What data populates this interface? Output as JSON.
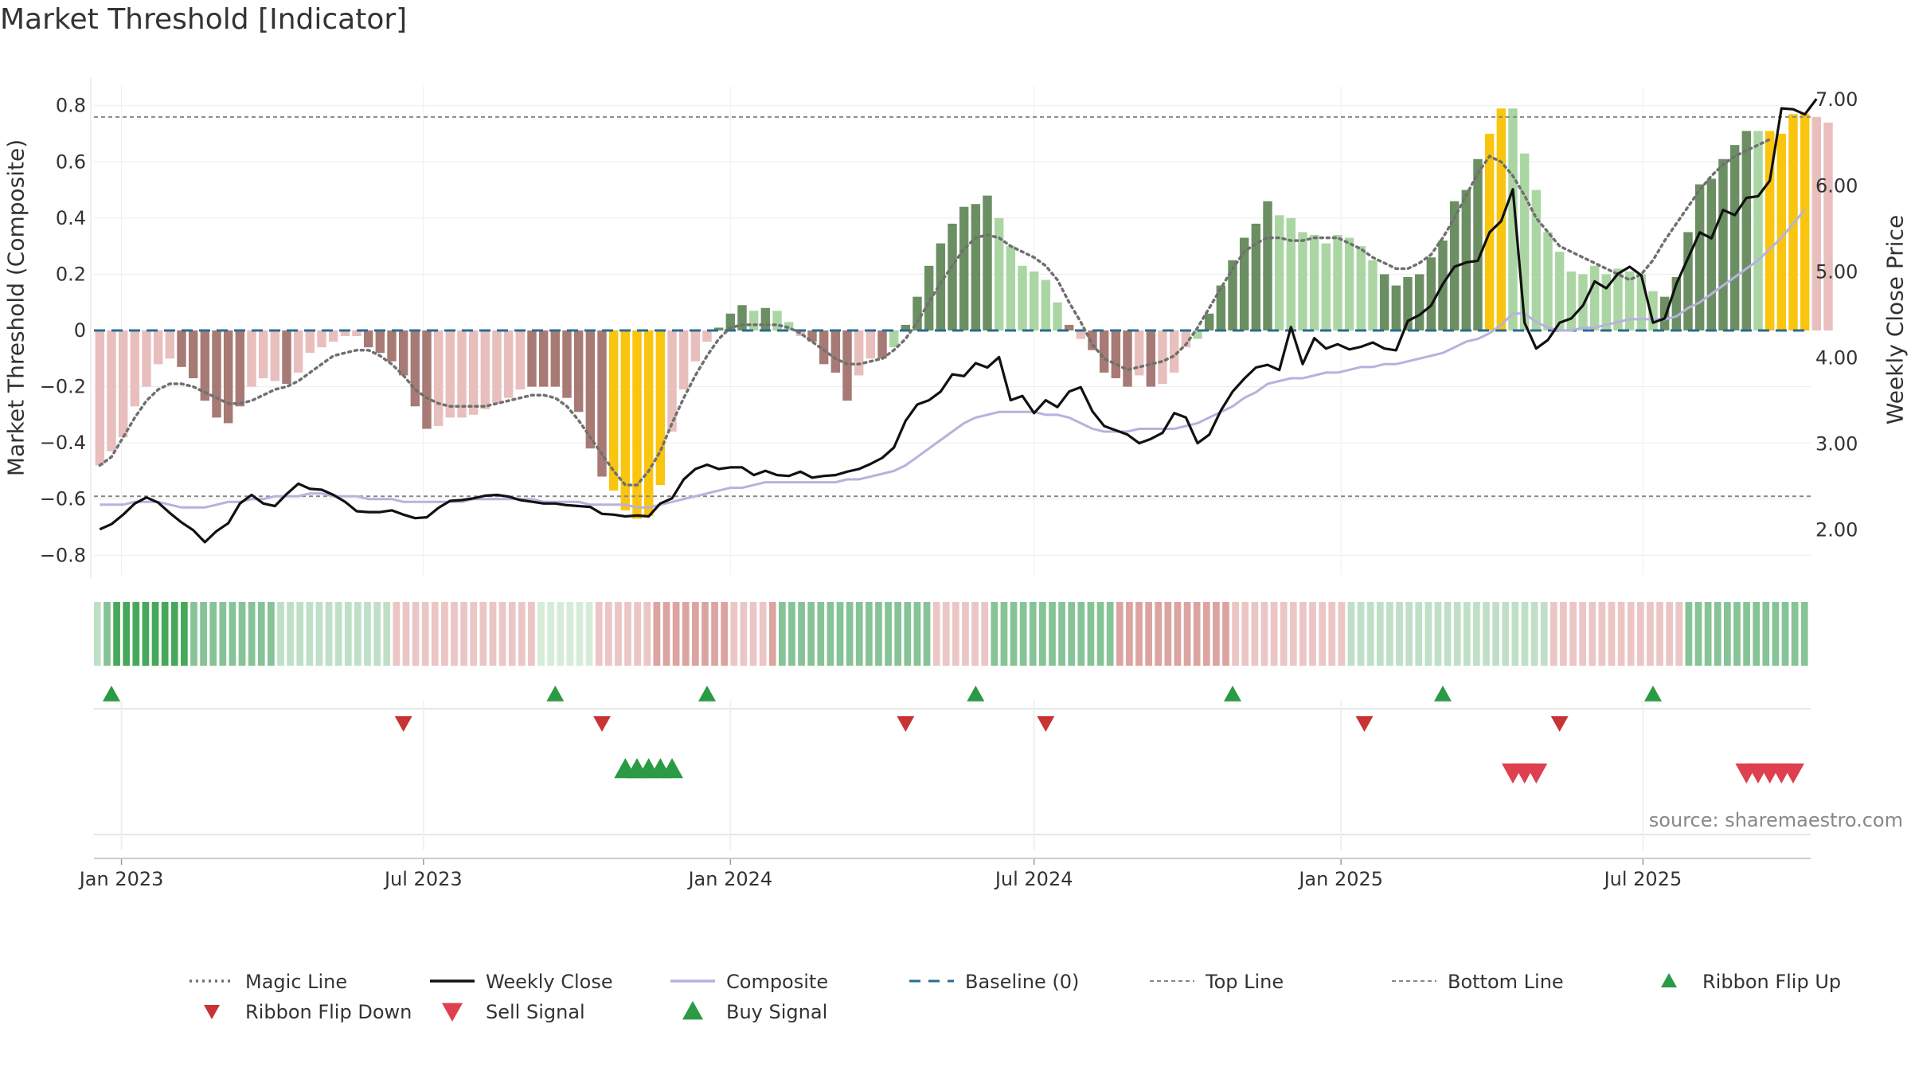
{
  "title": "Market Threshold [Indicator]",
  "source": "source: sharemaestro.com",
  "colors": {
    "dark_red": "#a87a75",
    "light_red": "#e8bfbd",
    "dark_green": "#6b8f62",
    "light_green": "#abd6a4",
    "yellow": "#f9c50e",
    "magic": "#707070",
    "close": "#111111",
    "composite": "#b8b1dd",
    "baseline": "#2b6c8f",
    "thresholds": "#888888",
    "ribbon_up": "#2a9a44",
    "ribbon_down": "#c83333",
    "buy": "#2a9a44",
    "sell": "#de4050"
  },
  "chart_data": {
    "type": "bar",
    "title": "Market Threshold [Indicator]",
    "ylabel": "Market Threshold (Composite)",
    "y2label": "Weekly Close Price",
    "ylim": [
      -0.87,
      0.87
    ],
    "y2lim": [
      1.47,
      7.15
    ],
    "yticks": [
      -0.8,
      -0.6,
      -0.4,
      -0.2,
      0,
      0.2,
      0.4,
      0.6,
      0.8
    ],
    "ytick_labels": [
      "−0.8",
      "−0.6",
      "−0.4",
      "−0.2",
      "0",
      "0.2",
      "0.4",
      "0.6",
      "0.8"
    ],
    "y2ticks": [
      2,
      3,
      4,
      5,
      6,
      7
    ],
    "y2tick_labels": [
      "2.00",
      "3.00",
      "4.00",
      "5.00",
      "6.00",
      "7.00"
    ],
    "x_start": "2022-12-19",
    "x_step_days": 7,
    "xticks": [
      "2023-01-01",
      "2023-07-01",
      "2024-01-01",
      "2024-07-01",
      "2025-01-01",
      "2025-07-01"
    ],
    "xtick_labels": [
      "Jan 2023",
      "Jul 2023",
      "Jan 2024",
      "Jul 2024",
      "Jan 2025",
      "Jul 2025"
    ],
    "top_line": 0.76,
    "bottom_line": -0.59,
    "baseline": 0,
    "bars": [
      -0.48,
      -0.43,
      -0.38,
      -0.27,
      -0.2,
      -0.12,
      -0.1,
      -0.13,
      -0.17,
      -0.25,
      -0.31,
      -0.33,
      -0.27,
      -0.2,
      -0.17,
      -0.18,
      -0.19,
      -0.15,
      -0.08,
      -0.06,
      -0.04,
      -0.02,
      -0.02,
      -0.06,
      -0.08,
      -0.11,
      -0.16,
      -0.27,
      -0.35,
      -0.34,
      -0.31,
      -0.31,
      -0.3,
      -0.28,
      -0.26,
      -0.24,
      -0.21,
      -0.2,
      -0.2,
      -0.2,
      -0.24,
      -0.29,
      -0.42,
      -0.52,
      -0.57,
      -0.64,
      -0.67,
      -0.66,
      -0.55,
      -0.36,
      -0.21,
      -0.11,
      -0.04,
      0.01,
      0.06,
      0.09,
      0.07,
      0.08,
      0.07,
      0.03,
      -0.02,
      -0.04,
      -0.12,
      -0.15,
      -0.25,
      -0.16,
      -0.1,
      -0.1,
      -0.06,
      0.02,
      0.12,
      0.23,
      0.31,
      0.38,
      0.44,
      0.45,
      0.48,
      0.4,
      0.3,
      0.23,
      0.21,
      0.18,
      0.1,
      0.02,
      -0.03,
      -0.07,
      -0.15,
      -0.17,
      -0.2,
      -0.16,
      -0.2,
      -0.19,
      -0.15,
      -0.06,
      -0.03,
      0.06,
      0.16,
      0.25,
      0.33,
      0.38,
      0.46,
      0.41,
      0.4,
      0.35,
      0.34,
      0.31,
      0.34,
      0.33,
      0.3,
      0.25,
      0.2,
      0.16,
      0.19,
      0.2,
      0.26,
      0.32,
      0.46,
      0.5,
      0.61,
      0.7,
      0.79,
      0.79,
      0.63,
      0.5,
      0.35,
      0.28,
      0.21,
      0.2,
      0.23,
      0.2,
      0.22,
      0.21,
      0.2,
      0.14,
      0.12,
      0.19,
      0.35,
      0.52,
      0.54,
      0.61,
      0.66,
      0.71,
      0.71,
      0.71,
      0.7,
      0.77,
      0.77,
      0.76,
      0.74
    ],
    "bar_colors": [
      "L",
      "L",
      "L",
      "L",
      "L",
      "L",
      "L",
      "R",
      "R",
      "R",
      "R",
      "R",
      "R",
      "L",
      "L",
      "L",
      "R",
      "L",
      "L",
      "L",
      "L",
      "L",
      "L",
      "R",
      "R",
      "R",
      "R",
      "R",
      "R",
      "L",
      "L",
      "L",
      "L",
      "L",
      "L",
      "L",
      "L",
      "R",
      "R",
      "R",
      "R",
      "R",
      "R",
      "R",
      "Y",
      "Y",
      "Y",
      "Y",
      "Y",
      "L",
      "L",
      "L",
      "L",
      "G",
      "G",
      "G",
      "LG",
      "G",
      "LG",
      "LG",
      "L",
      "R",
      "R",
      "R",
      "R",
      "L",
      "L",
      "R",
      "LG",
      "G",
      "G",
      "G",
      "G",
      "G",
      "G",
      "G",
      "G",
      "LG",
      "LG",
      "LG",
      "LG",
      "LG",
      "LG",
      "R",
      "L",
      "R",
      "R",
      "R",
      "R",
      "L",
      "R",
      "L",
      "L",
      "L",
      "LG",
      "G",
      "G",
      "G",
      "G",
      "G",
      "G",
      "LG",
      "LG",
      "LG",
      "LG",
      "LG",
      "LG",
      "LG",
      "LG",
      "LG",
      "G",
      "G",
      "G",
      "G",
      "G",
      "G",
      "G",
      "G",
      "G",
      "Y",
      "Y",
      "LG",
      "LG",
      "LG",
      "LG",
      "LG",
      "LG",
      "LG",
      "LG",
      "LG",
      "LG",
      "LG",
      "LG",
      "LG",
      "G",
      "G",
      "G",
      "G",
      "G",
      "G",
      "G",
      "G",
      "LG",
      "Y",
      "Y",
      "Y",
      "Y"
    ],
    "series": [
      {
        "name": "Magic Line",
        "style": "dotted",
        "values": [
          -0.48,
          -0.45,
          -0.38,
          -0.31,
          -0.25,
          -0.21,
          -0.19,
          -0.19,
          -0.2,
          -0.22,
          -0.24,
          -0.26,
          -0.26,
          -0.25,
          -0.23,
          -0.21,
          -0.2,
          -0.18,
          -0.15,
          -0.12,
          -0.09,
          -0.08,
          -0.07,
          -0.07,
          -0.09,
          -0.12,
          -0.16,
          -0.21,
          -0.24,
          -0.26,
          -0.27,
          -0.27,
          -0.27,
          -0.27,
          -0.26,
          -0.25,
          -0.24,
          -0.23,
          -0.23,
          -0.24,
          -0.27,
          -0.32,
          -0.38,
          -0.44,
          -0.5,
          -0.55,
          -0.55,
          -0.5,
          -0.43,
          -0.33,
          -0.24,
          -0.16,
          -0.09,
          -0.03,
          0.01,
          0.02,
          0.02,
          0.02,
          0.02,
          0.01,
          -0.01,
          -0.04,
          -0.07,
          -0.1,
          -0.12,
          -0.12,
          -0.11,
          -0.1,
          -0.07,
          -0.03,
          0.03,
          0.1,
          0.17,
          0.23,
          0.29,
          0.33,
          0.34,
          0.33,
          0.3,
          0.28,
          0.26,
          0.23,
          0.18,
          0.1,
          0.03,
          -0.05,
          -0.1,
          -0.12,
          -0.14,
          -0.13,
          -0.12,
          -0.11,
          -0.09,
          -0.05,
          0.01,
          0.08,
          0.15,
          0.22,
          0.28,
          0.31,
          0.33,
          0.33,
          0.32,
          0.32,
          0.33,
          0.33,
          0.33,
          0.31,
          0.29,
          0.26,
          0.24,
          0.22,
          0.22,
          0.24,
          0.27,
          0.33,
          0.4,
          0.48,
          0.56,
          0.62,
          0.6,
          0.55,
          0.48,
          0.4,
          0.35,
          0.3,
          0.28,
          0.26,
          0.24,
          0.22,
          0.2,
          0.18,
          0.2,
          0.25,
          0.32,
          0.38,
          0.44,
          0.5,
          0.55,
          0.59,
          0.62,
          0.64,
          0.66,
          0.68
        ]
      },
      {
        "name": "Weekly Close",
        "style": "solid",
        "axis": "right",
        "values": [
          2.0,
          2.06,
          2.17,
          2.3,
          2.37,
          2.31,
          2.19,
          2.08,
          1.99,
          1.85,
          1.98,
          2.07,
          2.3,
          2.4,
          2.3,
          2.27,
          2.41,
          2.53,
          2.47,
          2.46,
          2.4,
          2.32,
          2.21,
          2.2,
          2.2,
          2.22,
          2.17,
          2.13,
          2.14,
          2.25,
          2.33,
          2.34,
          2.36,
          2.39,
          2.4,
          2.38,
          2.34,
          2.32,
          2.3,
          2.3,
          2.28,
          2.27,
          2.26,
          2.18,
          2.17,
          2.15,
          2.16,
          2.15,
          2.3,
          2.36,
          2.58,
          2.7,
          2.75,
          2.7,
          2.72,
          2.72,
          2.63,
          2.68,
          2.63,
          2.62,
          2.67,
          2.6,
          2.62,
          2.63,
          2.67,
          2.7,
          2.76,
          2.83,
          2.95,
          3.26,
          3.45,
          3.5,
          3.6,
          3.8,
          3.78,
          3.93,
          3.88,
          4.0,
          3.5,
          3.55,
          3.35,
          3.5,
          3.42,
          3.6,
          3.65,
          3.37,
          3.2,
          3.15,
          3.1,
          3.0,
          3.05,
          3.12,
          3.35,
          3.3,
          3.0,
          3.1,
          3.38,
          3.6,
          3.75,
          3.88,
          3.91,
          3.85,
          4.35,
          3.92,
          4.22,
          4.1,
          4.15,
          4.09,
          4.12,
          4.17,
          4.1,
          4.08,
          4.42,
          4.49,
          4.6,
          4.85,
          5.05,
          5.1,
          5.12,
          5.45,
          5.58,
          5.95,
          4.4,
          4.1,
          4.2,
          4.4,
          4.45,
          4.6,
          4.88,
          4.8,
          4.97,
          5.05,
          4.95,
          4.4,
          4.45,
          4.85,
          5.15,
          5.45,
          5.38,
          5.71,
          5.65,
          5.85,
          5.87,
          6.05,
          6.89,
          6.88,
          6.82,
          7.0
        ]
      },
      {
        "name": "Composite",
        "style": "solid",
        "values": [
          -0.62,
          -0.62,
          -0.62,
          -0.61,
          -0.61,
          -0.61,
          -0.62,
          -0.63,
          -0.63,
          -0.63,
          -0.62,
          -0.61,
          -0.61,
          -0.6,
          -0.6,
          -0.59,
          -0.59,
          -0.59,
          -0.58,
          -0.58,
          -0.59,
          -0.59,
          -0.59,
          -0.6,
          -0.6,
          -0.6,
          -0.61,
          -0.61,
          -0.61,
          -0.61,
          -0.61,
          -0.61,
          -0.6,
          -0.6,
          -0.6,
          -0.6,
          -0.6,
          -0.6,
          -0.61,
          -0.61,
          -0.61,
          -0.61,
          -0.62,
          -0.62,
          -0.62,
          -0.62,
          -0.63,
          -0.63,
          -0.62,
          -0.61,
          -0.6,
          -0.59,
          -0.58,
          -0.57,
          -0.56,
          -0.56,
          -0.55,
          -0.54,
          -0.54,
          -0.54,
          -0.54,
          -0.54,
          -0.54,
          -0.54,
          -0.53,
          -0.53,
          -0.52,
          -0.51,
          -0.5,
          -0.48,
          -0.45,
          -0.42,
          -0.39,
          -0.36,
          -0.33,
          -0.31,
          -0.3,
          -0.29,
          -0.29,
          -0.29,
          -0.29,
          -0.3,
          -0.3,
          -0.31,
          -0.33,
          -0.35,
          -0.36,
          -0.36,
          -0.36,
          -0.35,
          -0.35,
          -0.35,
          -0.35,
          -0.34,
          -0.33,
          -0.31,
          -0.29,
          -0.27,
          -0.24,
          -0.22,
          -0.19,
          -0.18,
          -0.17,
          -0.17,
          -0.16,
          -0.15,
          -0.15,
          -0.14,
          -0.13,
          -0.13,
          -0.12,
          -0.12,
          -0.11,
          -0.1,
          -0.09,
          -0.08,
          -0.06,
          -0.04,
          -0.03,
          -0.01,
          0.02,
          0.06,
          0.06,
          0.03,
          0.01,
          0.0,
          0.0,
          0.01,
          0.01,
          0.02,
          0.03,
          0.04,
          0.04,
          0.04,
          0.04,
          0.05,
          0.08,
          0.1,
          0.13,
          0.16,
          0.19,
          0.22,
          0.25,
          0.29,
          0.33,
          0.38,
          0.43
        ]
      }
    ],
    "ribbon": [
      1,
      2,
      3,
      3,
      3,
      3,
      3,
      3,
      3,
      3,
      2,
      2,
      2,
      2,
      2,
      2,
      2,
      2,
      2,
      1,
      1,
      1,
      1,
      1,
      1,
      1,
      1,
      1,
      1,
      1,
      1,
      -1,
      -1,
      -1,
      -1,
      -1,
      -1,
      -1,
      -1,
      -1,
      -1,
      -1,
      -1,
      -1,
      -1,
      -1,
      0,
      0,
      0,
      0,
      0,
      0,
      -1,
      -1,
      -1,
      -1,
      -1,
      -1,
      -2,
      -2,
      -2,
      -2,
      -2,
      -2,
      -2,
      -2,
      -1,
      -1,
      -1,
      -1,
      -2,
      2,
      2,
      2,
      2,
      2,
      2,
      2,
      2,
      2,
      2,
      2,
      2,
      2,
      2,
      2,
      2,
      -1,
      -1,
      -1,
      -1,
      -1,
      -1,
      2,
      2,
      2,
      2,
      2,
      2,
      2,
      2,
      2,
      2,
      2,
      2,
      2,
      -2,
      -2,
      -2,
      -2,
      -2,
      -2,
      -2,
      -2,
      -2,
      -2,
      -2,
      -2,
      -1,
      -1,
      -1,
      -1,
      -1,
      -1,
      -1,
      -1,
      -1,
      -1,
      -1,
      -1,
      1,
      1,
      1,
      1,
      1,
      1,
      1,
      1,
      1,
      1,
      1,
      1,
      1,
      1,
      1,
      1,
      1,
      1,
      1,
      1,
      1,
      -1,
      -1,
      -1,
      -1,
      -1,
      -1,
      -1,
      -1,
      -1,
      -1,
      -1,
      -1,
      -1,
      -1,
      2,
      2,
      2,
      2,
      2,
      2,
      2,
      2,
      2,
      2,
      2,
      2,
      2
    ],
    "ribbon_flip_up": [
      "2022-12-26",
      "2023-09-18",
      "2023-12-18",
      "2024-05-27",
      "2024-10-28",
      "2025-03-03",
      "2025-07-07"
    ],
    "ribbon_flip_down": [
      "2023-06-19",
      "2023-10-16",
      "2024-04-15",
      "2024-07-08",
      "2025-01-15",
      "2025-05-12"
    ],
    "buy_signal": [
      "2023-10-30",
      "2023-11-06",
      "2023-11-13",
      "2023-11-20",
      "2023-11-27"
    ],
    "sell_signal": [
      "2025-04-14",
      "2025-04-21",
      "2025-04-28",
      "2025-09-01",
      "2025-09-08",
      "2025-09-15",
      "2025-09-22",
      "2025-09-29"
    ],
    "legend": [
      {
        "label": "Magic Line",
        "kind": "dotted",
        "color": "#707070"
      },
      {
        "label": "Weekly Close",
        "kind": "line",
        "color": "#111111"
      },
      {
        "label": "Composite",
        "kind": "line",
        "color": "#b8b1dd"
      },
      {
        "label": "Baseline (0)",
        "kind": "dashed",
        "color": "#2b6c8f"
      },
      {
        "label": "Top Line",
        "kind": "dashed-thin",
        "color": "#888888"
      },
      {
        "label": "Bottom Line",
        "kind": "dashed-thin",
        "color": "#888888"
      },
      {
        "label": "Ribbon Flip Up",
        "kind": "tri-up",
        "color": "#2a9a44"
      },
      {
        "label": "Ribbon Flip Down",
        "kind": "tri-down",
        "color": "#c83333"
      },
      {
        "label": "Sell Signal",
        "kind": "tri-down-big",
        "color": "#de4050"
      },
      {
        "label": "Buy Signal",
        "kind": "tri-up-big",
        "color": "#2a9a44"
      }
    ],
    "legend_placement": "bottom",
    "grid": true
  }
}
